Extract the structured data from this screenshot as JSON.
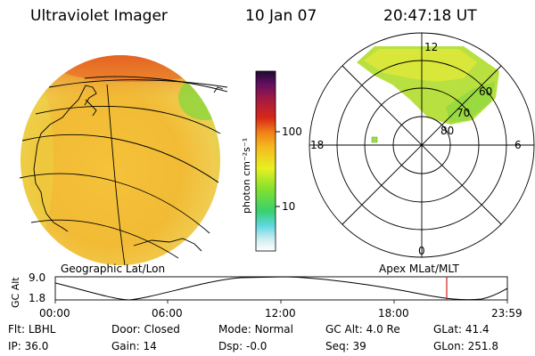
{
  "header": {
    "instrument": "Ultraviolet Imager",
    "date": "10 Jan 07",
    "time": "20:47:18 UT"
  },
  "colorbar": {
    "unit_label": "photon cm⁻²s⁻¹",
    "ticks": [
      "100",
      "10"
    ]
  },
  "polar_plot": {
    "mlt_labels": {
      "top": "12",
      "left": "18",
      "right": "6",
      "bottom": "0"
    },
    "lat_labels": [
      "60",
      "70",
      "80"
    ]
  },
  "map_labels": {
    "left": "Geographic Lat/Lon",
    "right": "Apex MLat/MLT"
  },
  "altitude_plot": {
    "axis_label": "GC Alt",
    "y_ticks": [
      "9.0",
      "1.8"
    ],
    "x_ticks": [
      "00:00",
      "06:00",
      "12:00",
      "18:00",
      "23:59"
    ],
    "marker_color": "#cc2222"
  },
  "status": {
    "row1": [
      {
        "label": "Flt:",
        "value": "LBHL"
      },
      {
        "label": "Door:",
        "value": "Closed"
      },
      {
        "label": "Mode:",
        "value": "Normal"
      },
      {
        "label": "GC Alt:",
        "value": "4.0 Re"
      },
      {
        "label": "GLat:",
        "value": "41.4"
      }
    ],
    "row2": [
      {
        "label": "IP:",
        "value": "36.0"
      },
      {
        "label": "Gain:",
        "value": "14"
      },
      {
        "label": "Dsp:",
        "value": "-0.0"
      },
      {
        "label": "Seq:",
        "value": "39"
      },
      {
        "label": "GLon:",
        "value": "251.8"
      }
    ]
  }
}
